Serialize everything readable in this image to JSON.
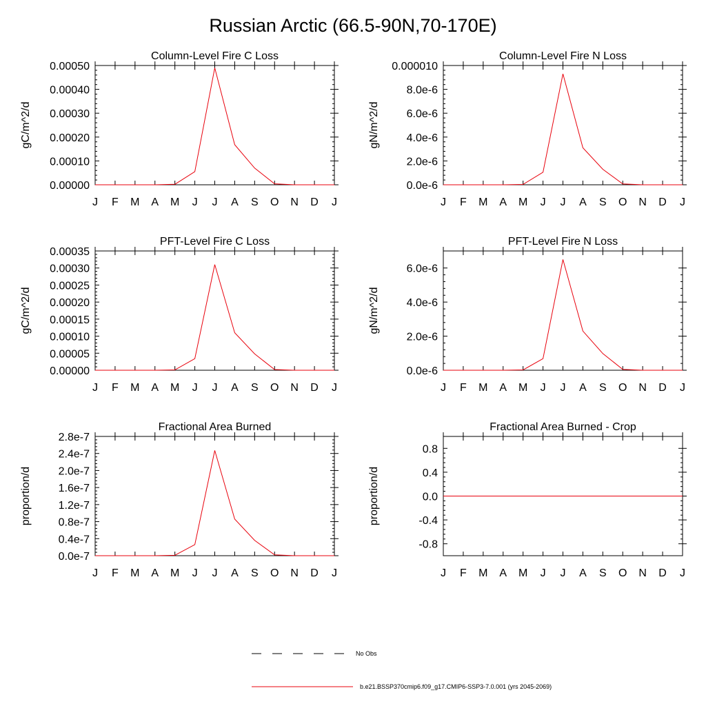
{
  "figure": {
    "title": "Russian Arctic (66.5-90N,70-170E)"
  },
  "colors": {
    "series": "#e8000b",
    "axis": "#000000",
    "background": "#ffffff"
  },
  "legend": {
    "obs_label": "No Obs",
    "model_label": "b.e21.BSSP370cmip6.f09_g17.CMIP6-SSP3-7.0.001 (yrs 2045-2069)"
  },
  "chart_data": [
    {
      "type": "line",
      "title": "Column-Level Fire C Loss",
      "ylabel": "gC/m^2/d",
      "categories": [
        "J",
        "F",
        "M",
        "A",
        "M",
        "J",
        "J",
        "A",
        "S",
        "O",
        "N",
        "D",
        "J"
      ],
      "ylim": [
        0,
        0.0005
      ],
      "yticks": [
        0,
        0.0001,
        0.0002,
        0.0003,
        0.0004,
        0.0005
      ],
      "ytick_labels": [
        "0.00000",
        "0.00010",
        "0.00020",
        "0.00030",
        "0.00040",
        "0.00050"
      ],
      "series": [
        {
          "values": [
            0,
            0,
            0,
            0,
            2e-06,
            5.5e-05,
            0.00049,
            0.000168,
            7e-05,
            4e-06,
            0,
            0,
            0
          ]
        }
      ]
    },
    {
      "type": "line",
      "title": "Column-Level Fire N Loss",
      "ylabel": "gN/m^2/d",
      "categories": [
        "J",
        "F",
        "M",
        "A",
        "M",
        "J",
        "J",
        "A",
        "S",
        "O",
        "N",
        "D",
        "J"
      ],
      "ylim": [
        0,
        1e-05
      ],
      "yticks": [
        0,
        2e-06,
        4e-06,
        6e-06,
        8e-06,
        1e-05
      ],
      "ytick_labels": [
        "0.0e-6",
        "2.0e-6",
        "4.0e-6",
        "6.0e-6",
        "8.0e-6",
        "0.000010"
      ],
      "series": [
        {
          "values": [
            0,
            0,
            0,
            0,
            3e-08,
            1.05e-06,
            9.3e-06,
            3.1e-06,
            1.3e-06,
            7e-08,
            0,
            0,
            0
          ]
        }
      ]
    },
    {
      "type": "line",
      "title": "PFT-Level Fire C Loss",
      "ylabel": "gC/m^2/d",
      "categories": [
        "J",
        "F",
        "M",
        "A",
        "M",
        "J",
        "J",
        "A",
        "S",
        "O",
        "N",
        "D",
        "J"
      ],
      "ylim": [
        0,
        0.00035
      ],
      "yticks": [
        0,
        5e-05,
        0.0001,
        0.00015,
        0.0002,
        0.00025,
        0.0003,
        0.00035
      ],
      "ytick_labels": [
        "0.00000",
        "0.00005",
        "0.00010",
        "0.00015",
        "0.00020",
        "0.00025",
        "0.00030",
        "0.00035"
      ],
      "series": [
        {
          "values": [
            0,
            0,
            0,
            0,
            1e-06,
            3.4e-05,
            0.00031,
            0.00011,
            4.8e-05,
            2e-06,
            0,
            0,
            0
          ]
        }
      ]
    },
    {
      "type": "line",
      "title": "PFT-Level Fire N Loss",
      "ylabel": "gN/m^2/d",
      "categories": [
        "J",
        "F",
        "M",
        "A",
        "M",
        "J",
        "J",
        "A",
        "S",
        "O",
        "N",
        "D",
        "J"
      ],
      "ylim": [
        0,
        7e-06
      ],
      "yticks": [
        0,
        2e-06,
        4e-06,
        6e-06
      ],
      "ytick_labels": [
        "0.0e-6",
        "2.0e-6",
        "4.0e-6",
        "6.0e-6"
      ],
      "series": [
        {
          "values": [
            0,
            0,
            0,
            0,
            2e-08,
            6.8e-07,
            6.5e-06,
            2.3e-06,
            9.8e-07,
            5e-08,
            0,
            0,
            0
          ]
        }
      ]
    },
    {
      "type": "line",
      "title": "Fractional Area Burned",
      "ylabel": "proportion/d",
      "categories": [
        "J",
        "F",
        "M",
        "A",
        "M",
        "J",
        "J",
        "A",
        "S",
        "O",
        "N",
        "D",
        "J"
      ],
      "ylim": [
        0,
        2.8e-07
      ],
      "yticks": [
        0,
        4e-08,
        8e-08,
        1.2e-07,
        1.6e-07,
        2e-07,
        2.4e-07,
        2.8e-07
      ],
      "ytick_labels": [
        "0.0e-7",
        "0.4e-7",
        "0.8e-7",
        "1.2e-7",
        "1.6e-7",
        "2.0e-7",
        "2.4e-7",
        "2.8e-7"
      ],
      "series": [
        {
          "values": [
            0,
            0,
            0,
            0,
            1e-09,
            2.6e-08,
            2.47e-07,
            8.6e-08,
            3.6e-08,
            2e-09,
            0,
            0,
            0
          ]
        }
      ]
    },
    {
      "type": "line",
      "title": "Fractional Area Burned - Crop",
      "ylabel": "proportion/d",
      "categories": [
        "J",
        "F",
        "M",
        "A",
        "M",
        "J",
        "J",
        "A",
        "S",
        "O",
        "N",
        "D",
        "J"
      ],
      "ylim": [
        -1,
        1
      ],
      "yticks": [
        -0.8,
        -0.4,
        0,
        0.4,
        0.8
      ],
      "ytick_labels": [
        "-0.8",
        "-0.4",
        "0.0",
        "0.4",
        "0.8"
      ],
      "series": [
        {
          "values": [
            0,
            0,
            0,
            0,
            0,
            0,
            0,
            0,
            0,
            0,
            0,
            0,
            0
          ]
        }
      ]
    }
  ]
}
